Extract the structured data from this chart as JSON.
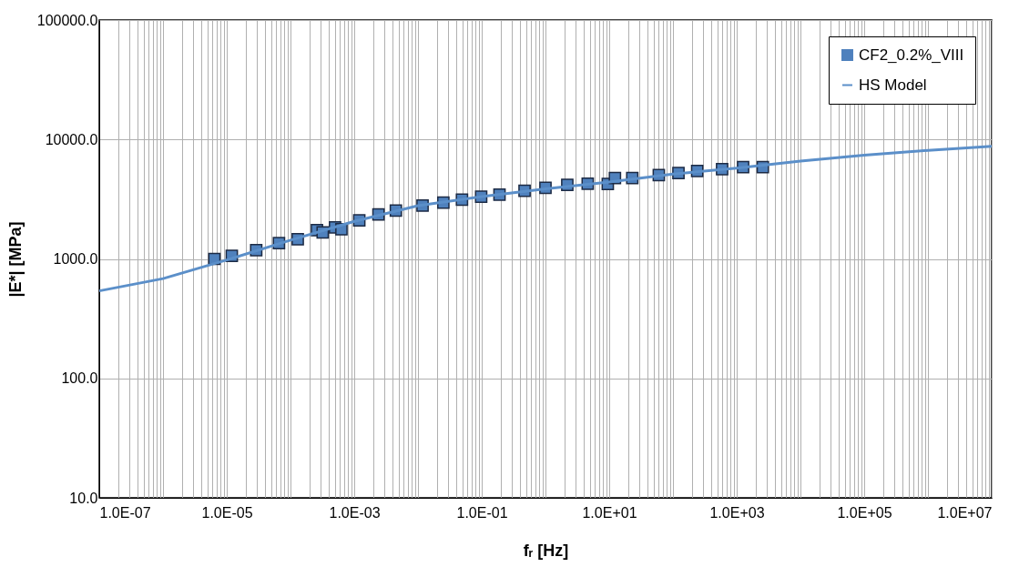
{
  "chart_data": {
    "type": "scatter",
    "xlabel": "fᵣ [Hz]",
    "ylabel": "|E*| [MPa]",
    "log": "xy",
    "grid": true,
    "legend": "top right",
    "xlim": [
      1e-07,
      10000000.0
    ],
    "ylim": [
      10,
      100000
    ],
    "yticks": [
      {
        "value": 10,
        "label": "10.0"
      },
      {
        "value": 100,
        "label": "100.0"
      },
      {
        "value": 1000,
        "label": "1000.0"
      },
      {
        "value": 10000,
        "label": "10000.0"
      },
      {
        "value": 100000,
        "label": "100000.0"
      }
    ],
    "xticks": [
      {
        "value": 1e-07,
        "label": "1.0E-07"
      },
      {
        "value": 2e-07,
        "label": null
      },
      {
        "value": 3e-07,
        "label": null
      },
      {
        "value": 4e-07,
        "label": null
      },
      {
        "value": 5e-07,
        "label": null
      },
      {
        "value": 6e-07,
        "label": null
      },
      {
        "value": 7e-07,
        "label": null
      },
      {
        "value": 8e-07,
        "label": null
      },
      {
        "value": 9e-07,
        "label": null
      },
      {
        "value": 1e-06,
        "label": null
      },
      {
        "value": 2e-06,
        "label": null
      },
      {
        "value": 3e-06,
        "label": null
      },
      {
        "value": 4e-06,
        "label": null
      },
      {
        "value": 5e-06,
        "label": null
      },
      {
        "value": 6e-06,
        "label": null
      },
      {
        "value": 7e-06,
        "label": null
      },
      {
        "value": 8e-06,
        "label": null
      },
      {
        "value": 9e-06,
        "label": null
      },
      {
        "value": 1e-05,
        "label": "1.0E-05"
      },
      {
        "value": 2e-05,
        "label": null
      },
      {
        "value": 3e-05,
        "label": null
      },
      {
        "value": 4e-05,
        "label": null
      },
      {
        "value": 5e-05,
        "label": null
      },
      {
        "value": 6e-05,
        "label": null
      },
      {
        "value": 7e-05,
        "label": null
      },
      {
        "value": 8e-05,
        "label": null
      },
      {
        "value": 9e-05,
        "label": null
      },
      {
        "value": 0.0001,
        "label": null
      },
      {
        "value": 0.0002,
        "label": null
      },
      {
        "value": 0.0003,
        "label": null
      },
      {
        "value": 0.0004,
        "label": null
      },
      {
        "value": 0.0005,
        "label": null
      },
      {
        "value": 0.0006,
        "label": null
      },
      {
        "value": 0.0007,
        "label": null
      },
      {
        "value": 0.0008,
        "label": null
      },
      {
        "value": 0.0009,
        "label": null
      },
      {
        "value": 0.001,
        "label": "1.0E-03"
      },
      {
        "value": 0.002,
        "label": null
      },
      {
        "value": 0.003,
        "label": null
      },
      {
        "value": 0.004,
        "label": null
      },
      {
        "value": 0.005,
        "label": null
      },
      {
        "value": 0.006,
        "label": null
      },
      {
        "value": 0.007,
        "label": null
      },
      {
        "value": 0.008,
        "label": null
      },
      {
        "value": 0.009,
        "label": null
      },
      {
        "value": 0.01,
        "label": null
      },
      {
        "value": 0.02,
        "label": null
      },
      {
        "value": 0.03,
        "label": null
      },
      {
        "value": 0.04,
        "label": null
      },
      {
        "value": 0.05,
        "label": null
      },
      {
        "value": 0.06,
        "label": null
      },
      {
        "value": 0.07,
        "label": null
      },
      {
        "value": 0.08,
        "label": null
      },
      {
        "value": 0.09,
        "label": null
      },
      {
        "value": 0.1,
        "label": "1.0E-01"
      },
      {
        "value": 0.2,
        "label": null
      },
      {
        "value": 0.3,
        "label": null
      },
      {
        "value": 0.4,
        "label": null
      },
      {
        "value": 0.5,
        "label": null
      },
      {
        "value": 0.6,
        "label": null
      },
      {
        "value": 0.7,
        "label": null
      },
      {
        "value": 0.8,
        "label": null
      },
      {
        "value": 0.9,
        "label": null
      },
      {
        "value": 1,
        "label": null
      },
      {
        "value": 2,
        "label": null
      },
      {
        "value": 3,
        "label": null
      },
      {
        "value": 4,
        "label": null
      },
      {
        "value": 5,
        "label": null
      },
      {
        "value": 6,
        "label": null
      },
      {
        "value": 7,
        "label": null
      },
      {
        "value": 8,
        "label": null
      },
      {
        "value": 9,
        "label": null
      },
      {
        "value": 10,
        "label": "1.0E+01"
      },
      {
        "value": 20,
        "label": null
      },
      {
        "value": 30,
        "label": null
      },
      {
        "value": 40,
        "label": null
      },
      {
        "value": 50,
        "label": null
      },
      {
        "value": 60,
        "label": null
      },
      {
        "value": 70,
        "label": null
      },
      {
        "value": 80,
        "label": null
      },
      {
        "value": 90,
        "label": null
      },
      {
        "value": 100,
        "label": null
      },
      {
        "value": 200,
        "label": null
      },
      {
        "value": 300,
        "label": null
      },
      {
        "value": 400,
        "label": null
      },
      {
        "value": 500,
        "label": null
      },
      {
        "value": 600,
        "label": null
      },
      {
        "value": 700,
        "label": null
      },
      {
        "value": 800,
        "label": null
      },
      {
        "value": 900,
        "label": null
      },
      {
        "value": 1000.0,
        "label": "1.0E+03"
      },
      {
        "value": 2000.0,
        "label": null
      },
      {
        "value": 3000.0,
        "label": null
      },
      {
        "value": 4000.0,
        "label": null
      },
      {
        "value": 5000.0,
        "label": null
      },
      {
        "value": 6000.0,
        "label": null
      },
      {
        "value": 7000.0,
        "label": null
      },
      {
        "value": 8000.0,
        "label": null
      },
      {
        "value": 9000.0,
        "label": null
      },
      {
        "value": 10000.0,
        "label": null
      },
      {
        "value": 20000.0,
        "label": null
      },
      {
        "value": 30000.0,
        "label": null
      },
      {
        "value": 40000.0,
        "label": null
      },
      {
        "value": 50000.0,
        "label": null
      },
      {
        "value": 60000.0,
        "label": null
      },
      {
        "value": 70000.0,
        "label": null
      },
      {
        "value": 80000.0,
        "label": null
      },
      {
        "value": 90000.0,
        "label": null
      },
      {
        "value": 100000.0,
        "label": "1.0E+05"
      },
      {
        "value": 200000.0,
        "label": null
      },
      {
        "value": 300000.0,
        "label": null
      },
      {
        "value": 400000.0,
        "label": null
      },
      {
        "value": 500000.0,
        "label": null
      },
      {
        "value": 600000.0,
        "label": null
      },
      {
        "value": 700000.0,
        "label": null
      },
      {
        "value": 800000.0,
        "label": null
      },
      {
        "value": 900000.0,
        "label": null
      },
      {
        "value": 1000000.0,
        "label": null
      },
      {
        "value": 2000000.0,
        "label": null
      },
      {
        "value": 3000000.0,
        "label": null
      },
      {
        "value": 4000000.0,
        "label": null
      },
      {
        "value": 5000000.0,
        "label": null
      },
      {
        "value": 6000000.0,
        "label": null
      },
      {
        "value": 7000000.0,
        "label": null
      },
      {
        "value": 8000000.0,
        "label": null
      },
      {
        "value": 9000000.0,
        "label": null
      },
      {
        "value": 10000000.0,
        "label": "1.0E+07"
      }
    ],
    "series": [
      {
        "name": "CF2_0.2%_VIII",
        "marker": "square",
        "color": "#4f81bd",
        "x": [
          6.4e-06,
          1.2e-05,
          2.9e-05,
          6.6e-05,
          0.00013,
          0.00026,
          0.00032,
          0.0005,
          0.00063,
          0.0012,
          0.0024,
          0.0045,
          0.0118,
          0.025,
          0.049,
          0.098,
          0.19,
          0.47,
          1.0,
          2.2,
          4.6,
          9.5,
          12.3,
          23,
          60,
          122,
          240,
          590,
          1260,
          2570
        ],
        "values": [
          1000,
          1060,
          1186,
          1356,
          1462,
          1738,
          1670,
          1837,
          1770,
          2100,
          2355,
          2540,
          2795,
          2960,
          3135,
          3320,
          3445,
          3720,
          3940,
          4170,
          4260,
          4250,
          4760,
          4760,
          5040,
          5240,
          5450,
          5650,
          5870,
          5870
        ]
      },
      {
        "name": "HS Model",
        "type": "line",
        "marker": "none",
        "color": "#5b8fc9",
        "x": [
          1e-07,
          1e-06,
          1e-05,
          0.0001,
          0.001,
          0.01,
          0.1,
          1,
          10,
          100,
          1000.0,
          10000.0,
          100000.0,
          1000000.0,
          10000000.0
        ],
        "values": [
          540,
          684,
          980,
          1436,
          2060,
          2790,
          3320,
          3860,
          4410,
          5140,
          5750,
          6580,
          7380,
          8110,
          8750
        ]
      }
    ]
  }
}
